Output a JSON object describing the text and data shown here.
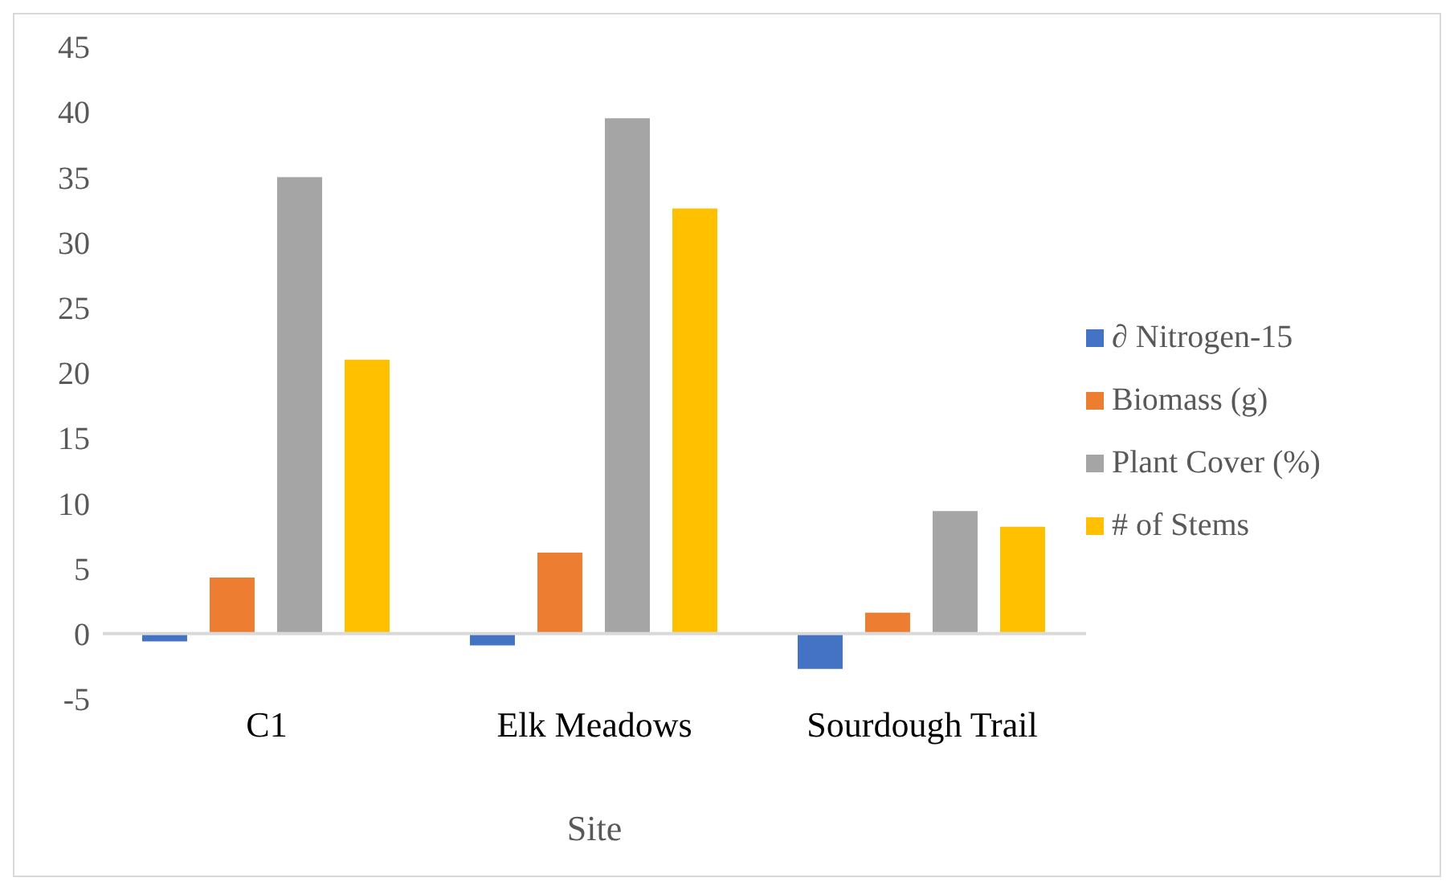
{
  "chart_data": {
    "type": "bar",
    "xlabel": "Site",
    "categories": [
      "C1",
      "Elk Meadows",
      "Sourdough Trail"
    ],
    "series": [
      {
        "name": "∂ Nitrogen-15",
        "color": "#4472c4",
        "values": [
          -0.6,
          -0.9,
          -2.7
        ]
      },
      {
        "name": "Biomass (g)",
        "color": "#ed7d31",
        "values": [
          4.3,
          6.2,
          1.6
        ]
      },
      {
        "name": "Plant Cover (%)",
        "color": "#a5a5a5",
        "values": [
          35,
          39.5,
          9.4
        ]
      },
      {
        "name": "# of Stems",
        "color": "#ffc000",
        "values": [
          21,
          32.6,
          8.2
        ]
      }
    ],
    "ylim": [
      -5,
      45
    ],
    "yticks": [
      -5,
      0,
      5,
      10,
      15,
      20,
      25,
      30,
      35,
      40,
      45
    ],
    "legend": "right"
  }
}
